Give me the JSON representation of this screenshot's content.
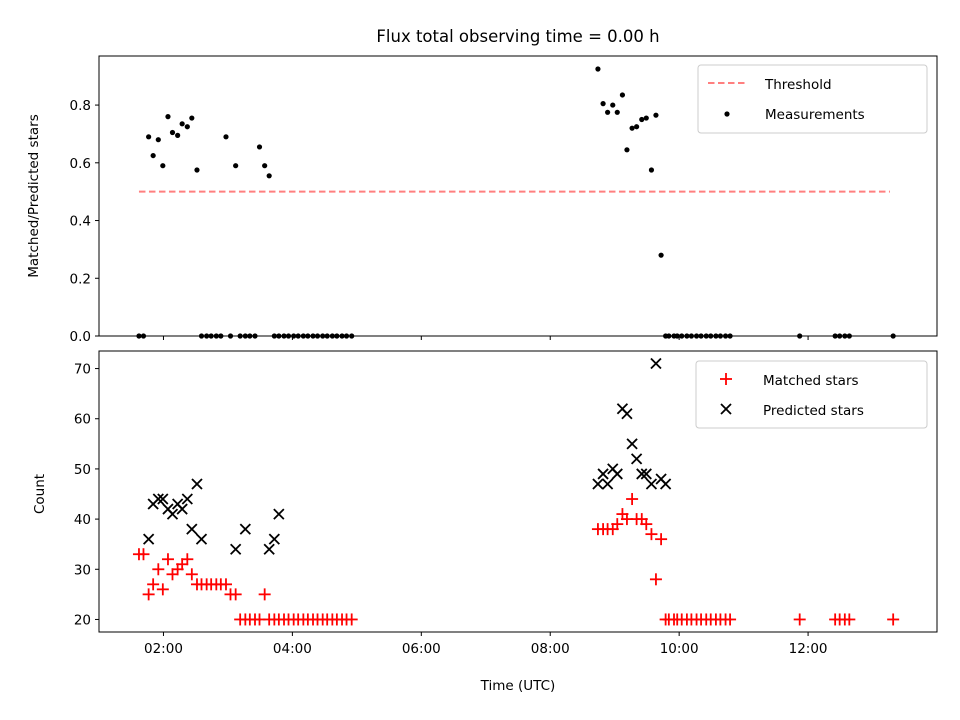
{
  "chart_data": [
    {
      "type": "scatter",
      "title": "Flux total observing time = 0.00 h",
      "xlabel": "",
      "ylabel": "Matched/Predicted stars",
      "xlim": [
        1.0,
        14.0
      ],
      "ylim": [
        0.0,
        0.97
      ],
      "xticks": [
        {
          "value": 2,
          "label": "02:00"
        },
        {
          "value": 4,
          "label": "04:00"
        },
        {
          "value": 6,
          "label": "06:00"
        },
        {
          "value": 8,
          "label": "08:00"
        },
        {
          "value": 10,
          "label": "10:00"
        },
        {
          "value": 12,
          "label": "12:00"
        }
      ],
      "yticks": [
        {
          "value": 0.0,
          "label": "0.0"
        },
        {
          "value": 0.2,
          "label": "0.2"
        },
        {
          "value": 0.4,
          "label": "0.4"
        },
        {
          "value": 0.6,
          "label": "0.6"
        },
        {
          "value": 0.8,
          "label": "0.8"
        }
      ],
      "legend": {
        "placement": "top-right",
        "entries": [
          "Threshold",
          "Measurements"
        ]
      },
      "grid": false,
      "series": [
        {
          "name": "Threshold",
          "style": "dashed-line",
          "color": "#ff7f7f",
          "x": [
            1.62,
            13.27
          ],
          "y": [
            0.5,
            0.5
          ]
        },
        {
          "name": "Measurements",
          "style": "dot",
          "color": "#000000",
          "x": [
            1.62,
            1.69,
            1.77,
            1.84,
            1.92,
            1.99,
            2.07,
            2.14,
            2.22,
            2.29,
            2.37,
            2.44,
            2.52,
            2.59,
            2.67,
            2.74,
            2.82,
            2.89,
            2.97,
            3.04,
            3.12,
            3.19,
            3.27,
            3.34,
            3.42,
            3.49,
            3.57,
            3.64,
            3.72,
            3.79,
            3.87,
            3.94,
            4.02,
            4.09,
            4.17,
            4.24,
            4.32,
            4.39,
            4.47,
            4.54,
            4.62,
            4.69,
            4.77,
            4.84,
            4.92,
            8.74,
            8.82,
            8.89,
            8.97,
            9.04,
            9.12,
            9.19,
            9.27,
            9.34,
            9.42,
            9.49,
            9.57,
            9.64,
            9.72,
            9.79,
            9.84,
            9.92,
            9.97,
            10.04,
            10.12,
            10.19,
            10.27,
            10.34,
            10.42,
            10.49,
            10.57,
            10.64,
            10.72,
            10.79,
            11.87,
            12.42,
            12.49,
            12.57,
            12.64,
            13.32
          ],
          "y": [
            0.0,
            0.0,
            0.69,
            0.625,
            0.68,
            0.59,
            0.76,
            0.705,
            0.695,
            0.735,
            0.725,
            0.755,
            0.575,
            0.0,
            0.0,
            0.0,
            0.0,
            0.0,
            0.69,
            0.0,
            0.59,
            0.0,
            0.0,
            0.0,
            0.0,
            0.655,
            0.59,
            0.555,
            0.0,
            0.0,
            0.0,
            0.0,
            0.0,
            0.0,
            0.0,
            0.0,
            0.0,
            0.0,
            0.0,
            0.0,
            0.0,
            0.0,
            0.0,
            0.0,
            0.0,
            0.925,
            0.805,
            0.775,
            0.8,
            0.775,
            0.835,
            0.645,
            0.72,
            0.725,
            0.75,
            0.755,
            0.575,
            0.765,
            0.28,
            0.0,
            0.0,
            0.0,
            0.0,
            0.0,
            0.0,
            0.0,
            0.0,
            0.0,
            0.0,
            0.0,
            0.0,
            0.0,
            0.0,
            0.0,
            0.0,
            0.0,
            0.0,
            0.0,
            0.0,
            0.0
          ]
        }
      ]
    },
    {
      "type": "scatter",
      "title": "",
      "xlabel": "Time (UTC)",
      "ylabel": "Count",
      "xlim": [
        1.0,
        14.0
      ],
      "ylim": [
        17.5,
        73.5
      ],
      "xticks": [
        {
          "value": 2,
          "label": "02:00"
        },
        {
          "value": 4,
          "label": "04:00"
        },
        {
          "value": 6,
          "label": "06:00"
        },
        {
          "value": 8,
          "label": "08:00"
        },
        {
          "value": 10,
          "label": "10:00"
        },
        {
          "value": 12,
          "label": "12:00"
        }
      ],
      "yticks": [
        {
          "value": 20,
          "label": "20"
        },
        {
          "value": 30,
          "label": "30"
        },
        {
          "value": 40,
          "label": "40"
        },
        {
          "value": 50,
          "label": "50"
        },
        {
          "value": 60,
          "label": "60"
        },
        {
          "value": 70,
          "label": "70"
        }
      ],
      "legend": {
        "placement": "top-right",
        "entries": [
          "Matched stars",
          "Predicted stars"
        ]
      },
      "grid": false,
      "series": [
        {
          "name": "Matched stars",
          "style": "plus",
          "color": "#ff0000",
          "x": [
            1.62,
            1.69,
            1.77,
            1.84,
            1.92,
            1.99,
            2.07,
            2.14,
            2.22,
            2.29,
            2.37,
            2.44,
            2.52,
            2.59,
            2.67,
            2.74,
            2.82,
            2.89,
            2.97,
            3.04,
            3.12,
            3.19,
            3.27,
            3.34,
            3.42,
            3.49,
            3.57,
            3.64,
            3.72,
            3.79,
            3.87,
            3.94,
            4.02,
            4.09,
            4.17,
            4.24,
            4.32,
            4.39,
            4.47,
            4.54,
            4.62,
            4.69,
            4.77,
            4.84,
            4.92,
            8.74,
            8.82,
            8.89,
            8.97,
            9.04,
            9.12,
            9.19,
            9.27,
            9.34,
            9.42,
            9.49,
            9.57,
            9.64,
            9.72,
            9.79,
            9.84,
            9.92,
            9.97,
            10.04,
            10.12,
            10.19,
            10.27,
            10.34,
            10.42,
            10.49,
            10.57,
            10.64,
            10.72,
            10.79,
            11.87,
            12.42,
            12.49,
            12.57,
            12.64,
            13.32
          ],
          "y": [
            33,
            33,
            25,
            27,
            30,
            26,
            32,
            29,
            30,
            31,
            32,
            29,
            27,
            27,
            27,
            27,
            27,
            27,
            27,
            25,
            25,
            20,
            20,
            20,
            20,
            20,
            25,
            20,
            20,
            20,
            20,
            20,
            20,
            20,
            20,
            20,
            20,
            20,
            20,
            20,
            20,
            20,
            20,
            20,
            20,
            38,
            38,
            38,
            38,
            39,
            41,
            40,
            44,
            40,
            40,
            39,
            37,
            28,
            36,
            20,
            20,
            20,
            20,
            20,
            20,
            20,
            20,
            20,
            20,
            20,
            20,
            20,
            20,
            20,
            20,
            20,
            20,
            20,
            20,
            20
          ]
        },
        {
          "name": "Predicted stars",
          "style": "x",
          "color": "#000000",
          "x": [
            1.77,
            1.84,
            1.92,
            1.99,
            2.07,
            2.14,
            2.22,
            2.29,
            2.37,
            2.44,
            2.52,
            2.59,
            3.12,
            3.27,
            3.64,
            3.72,
            3.79,
            8.74,
            8.82,
            8.89,
            8.97,
            9.04,
            9.12,
            9.19,
            9.27,
            9.34,
            9.42,
            9.49,
            9.57,
            9.64,
            9.72,
            9.79
          ],
          "y": [
            36,
            43,
            44,
            44,
            42,
            41,
            43,
            42,
            44,
            38,
            47,
            36,
            34,
            38,
            34,
            36,
            41,
            47,
            49,
            47,
            50,
            49,
            62,
            61,
            55,
            52,
            49,
            49,
            47,
            71,
            48,
            47
          ]
        }
      ]
    }
  ]
}
